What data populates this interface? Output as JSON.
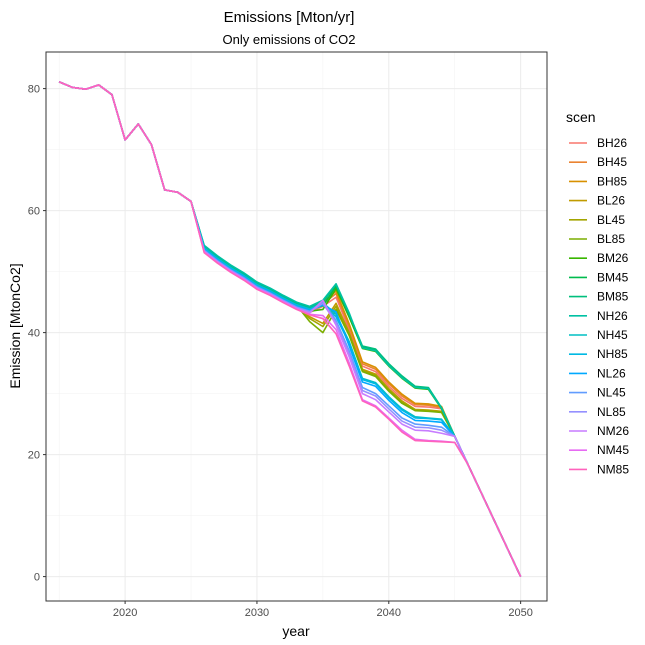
{
  "chart_data": {
    "type": "line",
    "title": "Emissions [Mton/yr]",
    "subtitle": "Only emissions of CO2",
    "xlabel": "year",
    "ylabel": "Emission [MtonCo2]",
    "xlim": [
      2014,
      2052
    ],
    "ylim": [
      -4,
      86
    ],
    "x_ticks": [
      2020,
      2030,
      2040,
      2050
    ],
    "y_ticks": [
      0,
      20,
      40,
      60,
      80
    ],
    "grid": true,
    "legend": {
      "title": "scen",
      "position": "right"
    },
    "x": [
      2015,
      2016,
      2017,
      2018,
      2019,
      2020,
      2021,
      2022,
      2023,
      2024,
      2025,
      2026,
      2027,
      2028,
      2029,
      2030,
      2031,
      2032,
      2033,
      2034,
      2035,
      2036,
      2037,
      2038,
      2039,
      2040,
      2041,
      2042,
      2043,
      2044,
      2045,
      2046,
      2047,
      2048,
      2049,
      2050
    ],
    "series": [
      {
        "name": "BH26",
        "color": "#F8766D",
        "values": [
          81.1,
          80.2,
          79.9,
          80.6,
          79.0,
          71.6,
          74.2,
          70.8,
          63.4,
          63.0,
          61.5,
          53.5,
          51.8,
          50.3,
          49.0,
          47.5,
          46.5,
          45.3,
          44.2,
          43.3,
          44.3,
          45.8,
          40.5,
          34.5,
          33.6,
          31.2,
          29.2,
          27.9,
          27.8,
          27.5,
          23.0,
          18.4,
          13.8,
          9.2,
          4.6,
          0.0
        ]
      },
      {
        "name": "BH45",
        "color": "#EA8331",
        "values": [
          81.1,
          80.2,
          79.9,
          80.6,
          79.0,
          71.6,
          74.2,
          70.8,
          63.4,
          63.0,
          61.5,
          53.6,
          51.9,
          50.4,
          49.1,
          47.6,
          46.6,
          45.4,
          44.3,
          43.5,
          44.7,
          46.4,
          41.0,
          34.9,
          34.0,
          31.6,
          29.6,
          28.2,
          28.1,
          27.7,
          23.0,
          18.4,
          13.8,
          9.2,
          4.6,
          0.0
        ]
      },
      {
        "name": "BH85",
        "color": "#D89000",
        "values": [
          81.1,
          80.2,
          79.9,
          80.6,
          79.0,
          71.6,
          74.2,
          70.8,
          63.4,
          63.0,
          61.5,
          53.7,
          52.0,
          50.5,
          49.2,
          47.7,
          46.7,
          45.5,
          44.4,
          43.7,
          45.0,
          46.8,
          41.4,
          35.2,
          34.3,
          31.9,
          29.9,
          28.4,
          28.3,
          27.9,
          23.0,
          18.4,
          13.8,
          9.2,
          4.6,
          0.0
        ]
      },
      {
        "name": "BL26",
        "color": "#C09B00",
        "values": [
          81.1,
          80.2,
          79.9,
          80.6,
          79.0,
          71.6,
          74.2,
          70.8,
          63.4,
          63.0,
          61.5,
          53.5,
          51.8,
          50.3,
          49.0,
          47.5,
          46.5,
          45.3,
          44.2,
          42.6,
          41.5,
          44.8,
          40.0,
          34.0,
          33.2,
          30.8,
          28.8,
          27.4,
          27.3,
          27.1,
          23.0,
          18.4,
          13.8,
          9.2,
          4.6,
          0.0
        ]
      },
      {
        "name": "BL45",
        "color": "#A3A500",
        "values": [
          81.1,
          80.2,
          79.9,
          80.6,
          79.0,
          71.6,
          74.2,
          70.8,
          63.4,
          63.0,
          61.5,
          53.6,
          51.9,
          50.4,
          49.1,
          47.6,
          46.6,
          45.4,
          44.3,
          42.3,
          41.0,
          44.3,
          39.8,
          33.8,
          33.0,
          30.6,
          28.6,
          27.3,
          27.2,
          27.0,
          23.0,
          18.4,
          13.8,
          9.2,
          4.6,
          0.0
        ]
      },
      {
        "name": "BL85",
        "color": "#7CAE00",
        "values": [
          81.1,
          80.2,
          79.9,
          80.6,
          79.0,
          71.6,
          74.2,
          70.8,
          63.4,
          63.0,
          61.5,
          53.8,
          52.1,
          50.6,
          49.3,
          47.8,
          46.8,
          45.6,
          44.5,
          41.8,
          40.0,
          43.8,
          39.5,
          33.6,
          32.8,
          30.4,
          28.4,
          27.2,
          27.1,
          26.9,
          23.0,
          18.4,
          13.8,
          9.2,
          4.6,
          0.0
        ]
      },
      {
        "name": "BM26",
        "color": "#39B600",
        "values": [
          81.1,
          80.2,
          79.9,
          80.6,
          79.0,
          71.6,
          74.2,
          70.8,
          63.4,
          63.0,
          61.5,
          54.0,
          52.3,
          50.8,
          49.5,
          48.0,
          47.0,
          45.8,
          44.7,
          43.5,
          43.8,
          47.2,
          42.5,
          37.4,
          36.9,
          34.5,
          32.5,
          30.9,
          30.7,
          27.5,
          23.0,
          18.4,
          13.8,
          9.2,
          4.6,
          0.0
        ]
      },
      {
        "name": "BM45",
        "color": "#00BB4E",
        "values": [
          81.1,
          80.2,
          79.9,
          80.6,
          79.0,
          71.6,
          74.2,
          70.8,
          63.4,
          63.0,
          61.5,
          54.1,
          52.4,
          50.9,
          49.6,
          48.1,
          47.1,
          45.9,
          44.8,
          43.8,
          44.4,
          47.6,
          42.8,
          37.6,
          37.1,
          34.7,
          32.7,
          31.1,
          30.9,
          27.6,
          23.0,
          18.4,
          13.8,
          9.2,
          4.6,
          0.0
        ]
      },
      {
        "name": "BM85",
        "color": "#00BF7D",
        "values": [
          81.1,
          80.2,
          79.9,
          80.6,
          79.0,
          71.6,
          74.2,
          70.8,
          63.4,
          63.0,
          61.5,
          54.2,
          52.5,
          51.0,
          49.7,
          48.2,
          47.2,
          46.0,
          44.9,
          44.1,
          45.0,
          47.9,
          43.0,
          37.8,
          37.3,
          34.9,
          32.9,
          31.2,
          31.0,
          27.7,
          23.0,
          18.4,
          13.8,
          9.2,
          4.6,
          0.0
        ]
      },
      {
        "name": "NH26",
        "color": "#00C1A3",
        "values": [
          81.1,
          80.2,
          79.9,
          80.6,
          79.0,
          71.6,
          74.2,
          70.8,
          63.4,
          63.0,
          61.5,
          54.3,
          52.6,
          51.1,
          49.8,
          48.3,
          47.3,
          46.1,
          45.0,
          44.3,
          45.3,
          48.0,
          43.2,
          37.5,
          37.0,
          34.6,
          32.6,
          31.0,
          30.8,
          27.6,
          23.0,
          18.4,
          13.8,
          9.2,
          4.6,
          0.0
        ]
      },
      {
        "name": "NH45",
        "color": "#00BFC4",
        "values": [
          81.1,
          80.2,
          79.9,
          80.6,
          79.0,
          71.6,
          74.2,
          70.8,
          63.4,
          63.0,
          61.5,
          53.9,
          52.2,
          50.7,
          49.4,
          47.9,
          46.9,
          45.7,
          44.6,
          43.9,
          44.9,
          43.0,
          38.5,
          32.5,
          31.8,
          29.5,
          27.5,
          26.2,
          26.0,
          25.8,
          23.0,
          18.4,
          13.8,
          9.2,
          4.6,
          0.0
        ]
      },
      {
        "name": "NH85",
        "color": "#00B9E3",
        "values": [
          81.1,
          80.2,
          79.9,
          80.6,
          79.0,
          71.6,
          74.2,
          70.8,
          63.4,
          63.0,
          61.5,
          53.8,
          52.1,
          50.6,
          49.3,
          47.8,
          46.8,
          45.6,
          44.5,
          43.8,
          44.6,
          42.6,
          38.2,
          32.3,
          31.6,
          29.3,
          27.3,
          26.0,
          25.9,
          25.7,
          23.0,
          18.4,
          13.8,
          9.2,
          4.6,
          0.0
        ]
      },
      {
        "name": "NL26",
        "color": "#00A9FF",
        "values": [
          81.1,
          80.2,
          79.9,
          80.6,
          79.0,
          71.6,
          74.2,
          70.8,
          63.4,
          63.0,
          61.5,
          53.6,
          51.9,
          50.4,
          49.1,
          47.6,
          46.6,
          45.4,
          44.3,
          43.6,
          44.5,
          43.4,
          37.8,
          31.9,
          31.2,
          28.9,
          26.9,
          25.6,
          25.5,
          25.3,
          23.0,
          18.4,
          13.8,
          9.2,
          4.6,
          0.0
        ]
      },
      {
        "name": "NL45",
        "color": "#619CFF",
        "values": [
          81.1,
          80.2,
          79.9,
          80.6,
          79.0,
          71.6,
          74.2,
          70.8,
          63.4,
          63.0,
          61.5,
          53.5,
          51.8,
          50.3,
          49.0,
          47.5,
          46.5,
          45.3,
          44.2,
          43.5,
          45.0,
          42.0,
          37.0,
          31.0,
          30.0,
          28.0,
          26.0,
          25.0,
          24.8,
          24.5,
          23.0,
          18.4,
          13.8,
          9.2,
          4.6,
          0.0
        ]
      },
      {
        "name": "NL85",
        "color": "#9590FF",
        "values": [
          81.1,
          80.2,
          79.9,
          80.6,
          79.0,
          71.6,
          74.2,
          70.8,
          63.4,
          63.0,
          61.5,
          53.4,
          51.7,
          50.2,
          48.9,
          47.4,
          46.4,
          45.2,
          44.1,
          43.4,
          44.8,
          41.6,
          36.5,
          30.5,
          29.6,
          27.5,
          25.5,
          24.5,
          24.4,
          24.0,
          23.0,
          18.4,
          13.8,
          9.2,
          4.6,
          0.0
        ]
      },
      {
        "name": "NM26",
        "color": "#C77CFF",
        "values": [
          81.1,
          80.2,
          79.9,
          80.6,
          79.0,
          71.6,
          74.2,
          70.8,
          63.4,
          63.0,
          61.5,
          53.3,
          51.6,
          50.1,
          48.8,
          47.3,
          46.3,
          45.1,
          44.0,
          43.2,
          45.3,
          41.2,
          36.0,
          30.0,
          29.0,
          27.0,
          25.0,
          24.0,
          23.9,
          23.5,
          23.0,
          18.4,
          13.8,
          9.2,
          4.6,
          0.0
        ]
      },
      {
        "name": "NM45",
        "color": "#E76BF3",
        "values": [
          81.1,
          80.2,
          79.9,
          80.6,
          79.0,
          71.6,
          74.2,
          70.8,
          63.4,
          63.0,
          61.5,
          53.2,
          51.5,
          50.0,
          48.7,
          47.2,
          46.2,
          45.0,
          43.9,
          43.0,
          42.8,
          40.5,
          35.0,
          29.0,
          28.0,
          26.0,
          24.0,
          22.5,
          22.3,
          22.2,
          22.0,
          18.4,
          13.8,
          9.2,
          4.6,
          0.0
        ]
      },
      {
        "name": "NM85",
        "color": "#FF62BC",
        "values": [
          81.1,
          80.2,
          79.9,
          80.6,
          79.0,
          71.6,
          74.2,
          70.8,
          63.4,
          63.0,
          61.5,
          53.1,
          51.4,
          49.9,
          48.6,
          47.1,
          46.1,
          44.9,
          43.8,
          42.9,
          42.3,
          39.8,
          34.5,
          28.8,
          27.8,
          25.8,
          23.7,
          22.3,
          22.2,
          22.1,
          22.0,
          18.4,
          13.8,
          9.2,
          4.6,
          0.0
        ]
      }
    ]
  }
}
